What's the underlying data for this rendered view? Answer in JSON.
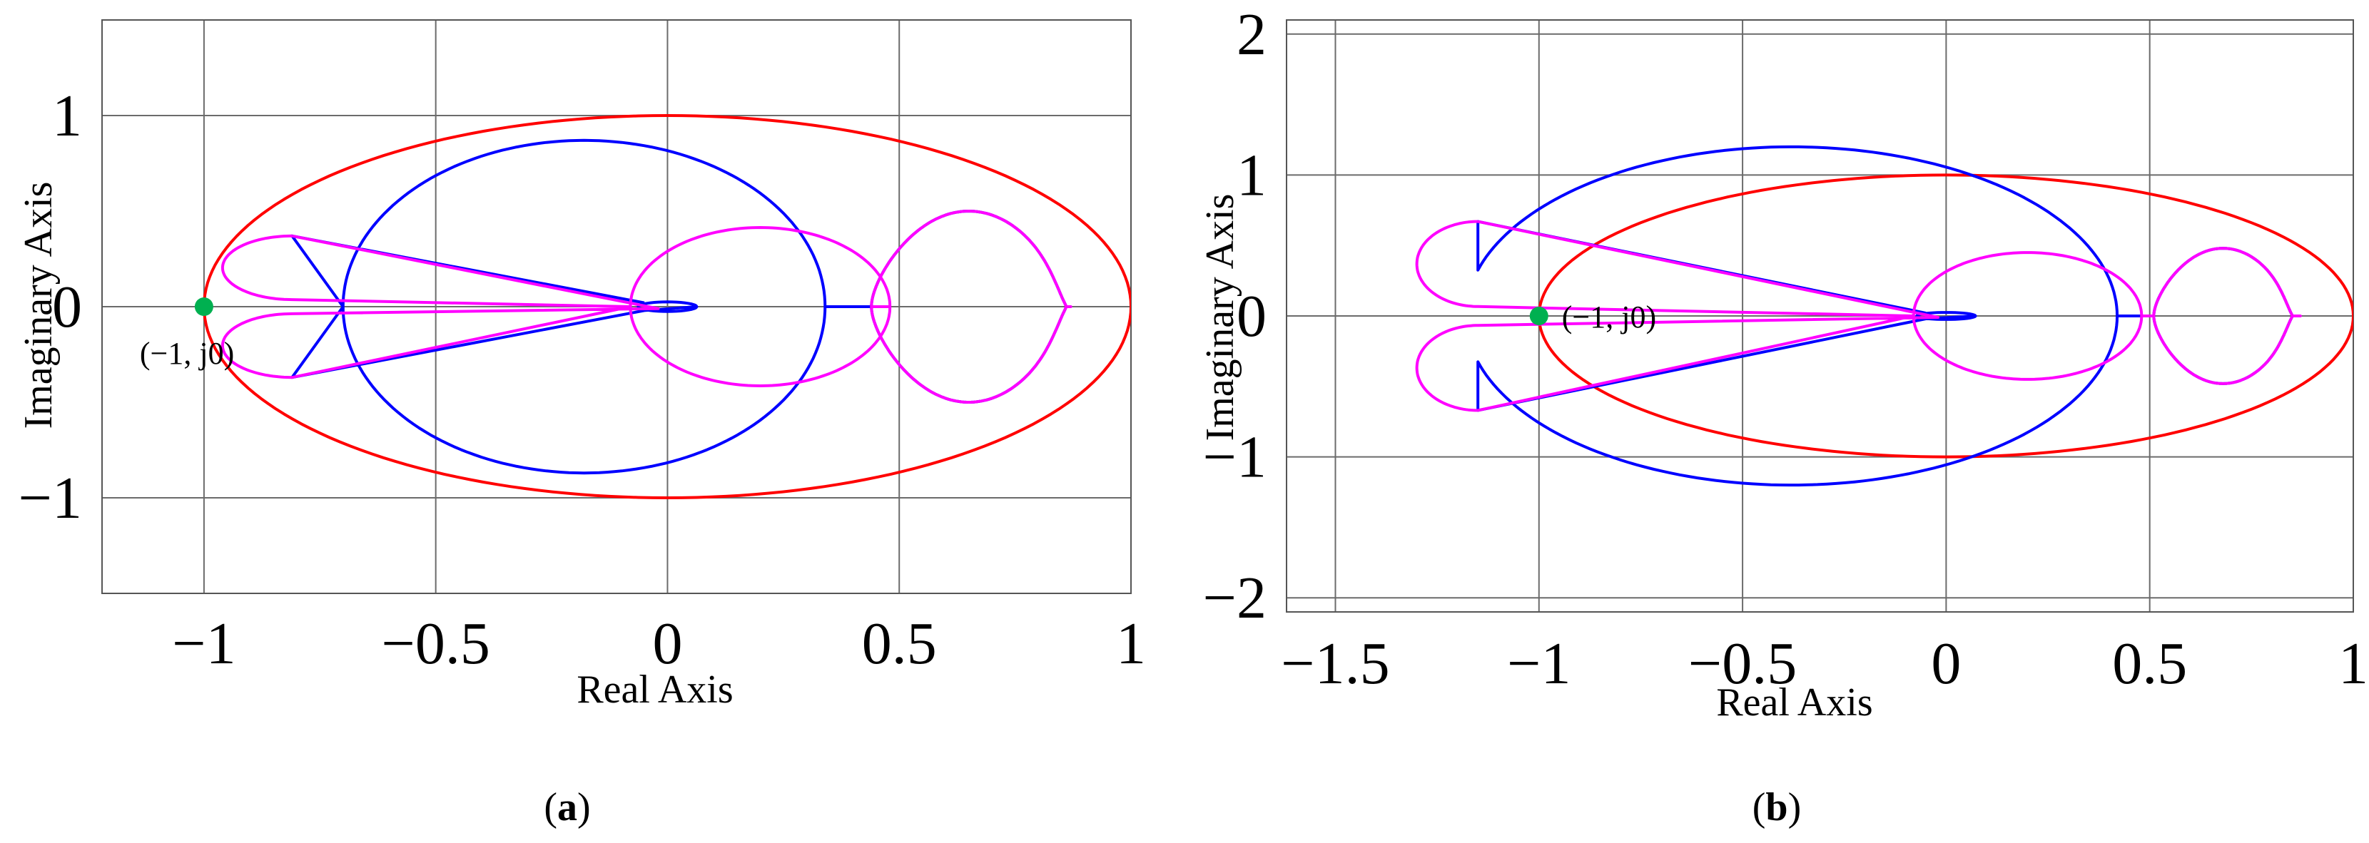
{
  "chart_data": [
    {
      "id": "a",
      "type": "line",
      "panel_label": "a",
      "xlabel": "Real Axis",
      "ylabel": "Imaginary Axis",
      "xlim": [
        -1.22,
        1.0
      ],
      "ylim": [
        -1.5,
        1.5
      ],
      "xticks": [
        -1,
        -0.5,
        0,
        0.5,
        1
      ],
      "yticks": [
        1,
        0,
        -1
      ],
      "xtick_labels": [
        "−1",
        "−0.5",
        "0",
        "0.5",
        "1"
      ],
      "ytick_labels": [
        "1",
        "0",
        "−1"
      ],
      "grid": true,
      "critical_point": {
        "x": -1,
        "y": 0,
        "label": "(−1,  j0)",
        "color": "#00b050"
      },
      "series": [
        {
          "color": "#ff0000",
          "curve": "ellipse",
          "params": {
            "cx": 0,
            "rx": 1,
            "ry": 1
          }
        },
        {
          "color": "#0000ff",
          "curve": "nyquist",
          "params": {
            "xl": -0.81,
            "yl": 0.37,
            "R": 0.52,
            "Ry": 0.87,
            "cx": -0.18,
            "leftX": -0.81,
            "junctionX": 0.53,
            "junctionY": 0.23,
            "loopCx": 0.65,
            "loopRx": 0.21,
            "loopRy": 0.5,
            "innerLoop": 0.07
          }
        },
        {
          "color": "#ff00ff",
          "curve": "nyquist-inner",
          "params": {
            "xl": -0.81,
            "yl": 0.37,
            "lobeCx": 0.2,
            "lobeRx": 0.28,
            "lobeRy": 0.46,
            "loopCx": 0.65,
            "loopRx": 0.21,
            "loopRy": 0.5,
            "outerX": 0.87
          }
        }
      ]
    },
    {
      "id": "b",
      "type": "line",
      "panel_label": "b",
      "xlabel": "Real Axis",
      "ylabel": "Imaginary Axis",
      "xlim": [
        -1.62,
        1.0
      ],
      "ylim": [
        -2.1,
        2.1
      ],
      "xticks": [
        -1.5,
        -1,
        -0.5,
        0,
        0.5,
        1
      ],
      "yticks": [
        2,
        1,
        0,
        -1,
        -2
      ],
      "xtick_labels": [
        "−1.5",
        "−1",
        "−0.5",
        "0",
        "0.5",
        "1"
      ],
      "ytick_labels": [
        "2",
        "1",
        "0",
        "−1",
        "−2"
      ],
      "grid": true,
      "critical_point": {
        "x": -1,
        "y": 0,
        "label": "(−1,  j0)",
        "color": "#00b050"
      },
      "series": [
        {
          "color": "#ff0000",
          "curve": "ellipse",
          "params": {
            "cx": 0,
            "rx": 1,
            "ry": 1
          }
        },
        {
          "color": "#0000ff",
          "curve": "nyquist",
          "params": {
            "xl": -1.15,
            "yl": 0.67,
            "R": 0.8,
            "Ry": 1.2,
            "cx": -0.38,
            "leftX": -1.15,
            "junctionX": 0.53,
            "junctionY": 0.2,
            "loopCx": 0.68,
            "loopRx": 0.17,
            "loopRy": 0.48,
            "innerLoop": 0.08
          }
        },
        {
          "color": "#ff00ff",
          "curve": "nyquist-inner",
          "params": {
            "xl": -1.15,
            "yl": 0.67,
            "lobeCx": 0.2,
            "lobeRx": 0.28,
            "lobeRy": 0.5,
            "loopCx": 0.68,
            "loopRx": 0.17,
            "loopRy": 0.48,
            "outerX": 0.87
          }
        }
      ]
    }
  ]
}
